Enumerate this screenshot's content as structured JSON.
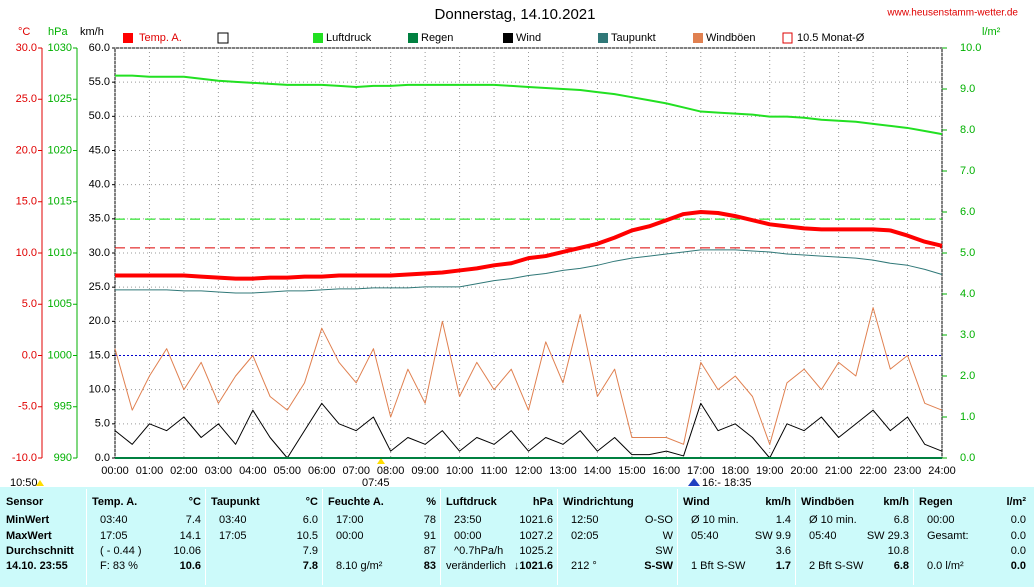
{
  "header": {
    "site": "www.heusenstamm-wetter.de"
  },
  "chart_data": {
    "type": "line",
    "title": "Donnerstag, 14.10.2021",
    "axis_units": {
      "temp": "°C",
      "hpa": "hPa",
      "y": "km/h",
      "y2": "l/m²"
    },
    "x": [
      0,
      0.5,
      1,
      1.5,
      2,
      2.5,
      3,
      3.5,
      4,
      4.5,
      5,
      5.5,
      6,
      6.5,
      7,
      7.5,
      8,
      8.5,
      9,
      9.5,
      10,
      10.5,
      11,
      11.5,
      12,
      12.5,
      13,
      13.5,
      14,
      14.5,
      15,
      15.5,
      16,
      16.5,
      17,
      17.5,
      18,
      18.5,
      19,
      19.5,
      20,
      20.5,
      21,
      21.5,
      22,
      22.5,
      23,
      23.5,
      24
    ],
    "xlim": [
      0,
      24
    ],
    "xticks": [
      {
        "value": 0,
        "label": "00:00"
      },
      {
        "value": 1,
        "label": "01:00"
      },
      {
        "value": 2,
        "label": "02:00"
      },
      {
        "value": 3,
        "label": "03:00"
      },
      {
        "value": 4,
        "label": "04:00"
      },
      {
        "value": 5,
        "label": "05:00"
      },
      {
        "value": 6,
        "label": "06:00"
      },
      {
        "value": 7,
        "label": "07:00"
      },
      {
        "value": 8,
        "label": "08:00"
      },
      {
        "value": 9,
        "label": "09:00"
      },
      {
        "value": 10,
        "label": "10:00"
      },
      {
        "value": 11,
        "label": "11:00"
      },
      {
        "value": 12,
        "label": "12:00"
      },
      {
        "value": 13,
        "label": "13:00"
      },
      {
        "value": 14,
        "label": "14:00"
      },
      {
        "value": 15,
        "label": "15:00"
      },
      {
        "value": 16,
        "label": "16:00"
      },
      {
        "value": 17,
        "label": "17:00"
      },
      {
        "value": 18,
        "label": "18:00"
      },
      {
        "value": 19,
        "label": "19:00"
      },
      {
        "value": 20,
        "label": "20:00"
      },
      {
        "value": 21,
        "label": "21:00"
      },
      {
        "value": 22,
        "label": "22:00"
      },
      {
        "value": 23,
        "label": "23:00"
      },
      {
        "value": 24,
        "label": "24:00"
      }
    ],
    "ylim": [
      0,
      60
    ],
    "yticks": [
      {
        "value": 0,
        "label": "0.0"
      },
      {
        "value": 5,
        "label": "5.0"
      },
      {
        "value": 10,
        "label": "10.0"
      },
      {
        "value": 15,
        "label": "15.0"
      },
      {
        "value": 20,
        "label": "20.0"
      },
      {
        "value": 25,
        "label": "25.0"
      },
      {
        "value": 30,
        "label": "30.0"
      },
      {
        "value": 35,
        "label": "35.0"
      },
      {
        "value": 40,
        "label": "40.0"
      },
      {
        "value": 45,
        "label": "45.0"
      },
      {
        "value": 50,
        "label": "50.0"
      },
      {
        "value": 55,
        "label": "55.0"
      },
      {
        "value": 60,
        "label": "60.0"
      }
    ],
    "temp_lim": [
      -10,
      30
    ],
    "temp_ticks": [
      {
        "value": -10,
        "label": "-10.0"
      },
      {
        "value": -5,
        "label": "-5.0"
      },
      {
        "value": 0,
        "label": "0.0"
      },
      {
        "value": 5,
        "label": "5.0"
      },
      {
        "value": 10,
        "label": "10.0"
      },
      {
        "value": 15,
        "label": "15.0"
      },
      {
        "value": 20,
        "label": "20.0"
      },
      {
        "value": 25,
        "label": "25.0"
      },
      {
        "value": 30,
        "label": "30.0"
      }
    ],
    "hpa_lim": [
      990,
      1030
    ],
    "hpa_ticks": [
      990,
      995,
      1000,
      1005,
      1010,
      1015,
      1020,
      1025,
      1030
    ],
    "y2lim": [
      0,
      10
    ],
    "y2ticks": [
      {
        "value": 0,
        "label": "0.0"
      },
      {
        "value": 1,
        "label": "1.0"
      },
      {
        "value": 2,
        "label": "2.0"
      },
      {
        "value": 3,
        "label": "3.0"
      },
      {
        "value": 4,
        "label": "4.0"
      },
      {
        "value": 5,
        "label": "5.0"
      },
      {
        "value": 6,
        "label": "6.0"
      },
      {
        "value": 7,
        "label": "7.0"
      },
      {
        "value": 8,
        "label": "8.0"
      },
      {
        "value": 9,
        "label": "9.0"
      },
      {
        "value": 10,
        "label": "10.0"
      }
    ],
    "grid": true,
    "series": [
      {
        "name": "Temp. A.",
        "color": "#ff0000",
        "axis": "temp",
        "width": 4,
        "values": [
          7.8,
          7.8,
          7.8,
          7.8,
          7.8,
          7.7,
          7.6,
          7.5,
          7.5,
          7.6,
          7.6,
          7.7,
          7.7,
          7.8,
          7.8,
          7.8,
          7.8,
          7.9,
          8.0,
          8.1,
          8.3,
          8.5,
          8.8,
          9.0,
          9.5,
          9.7,
          10.1,
          10.5,
          10.9,
          11.5,
          12.2,
          12.6,
          13.2,
          13.8,
          14.0,
          13.9,
          13.6,
          13.2,
          12.8,
          12.6,
          12.4,
          12.3,
          12.3,
          12.3,
          12.3,
          12.2,
          11.7,
          11.1,
          10.7
        ]
      },
      {
        "name": "Luftdruck",
        "color": "#22e022",
        "axis": "hpa",
        "width": 2,
        "values": [
          1027.3,
          1027.3,
          1027.2,
          1027.2,
          1027.2,
          1027.0,
          1026.8,
          1026.7,
          1026.6,
          1026.5,
          1026.4,
          1026.4,
          1026.4,
          1026.3,
          1026.2,
          1026.3,
          1026.3,
          1026.4,
          1026.4,
          1026.4,
          1026.4,
          1026.4,
          1026.4,
          1026.3,
          1026.2,
          1026.1,
          1026.0,
          1025.9,
          1025.7,
          1025.5,
          1025.2,
          1024.9,
          1024.6,
          1024.2,
          1023.8,
          1023.7,
          1023.6,
          1023.5,
          1023.3,
          1023.3,
          1023.2,
          1023.0,
          1022.9,
          1022.8,
          1022.6,
          1022.4,
          1022.2,
          1021.9,
          1021.6
        ]
      },
      {
        "name": "Regen",
        "color": "#008040",
        "axis": "y2",
        "width": 2,
        "values": [
          0,
          0,
          0,
          0,
          0,
          0,
          0,
          0,
          0,
          0,
          0,
          0,
          0,
          0,
          0,
          0,
          0,
          0,
          0,
          0,
          0,
          0,
          0,
          0,
          0,
          0,
          0,
          0,
          0,
          0,
          0,
          0,
          0,
          0,
          0,
          0,
          0,
          0,
          0,
          0,
          0,
          0,
          0,
          0,
          0,
          0,
          0,
          0,
          0
        ]
      },
      {
        "name": "Wind",
        "color": "#000000",
        "axis": "y",
        "width": 1,
        "values": [
          4,
          2,
          5,
          4,
          6,
          3,
          5,
          2,
          7,
          3,
          0,
          4,
          8,
          5,
          4,
          6,
          1,
          3,
          2,
          4,
          1,
          3,
          2,
          4,
          1,
          3,
          2,
          4,
          1,
          3,
          0.5,
          0.5,
          1,
          0.3,
          8,
          4,
          5,
          3,
          0,
          5,
          4,
          6,
          3,
          5,
          7,
          4,
          6,
          2,
          1
        ]
      },
      {
        "name": "Taupunkt",
        "color": "#307878",
        "axis": "temp",
        "width": 1,
        "values": [
          6.4,
          6.4,
          6.4,
          6.4,
          6.3,
          6.3,
          6.2,
          6.1,
          6.1,
          6.2,
          6.3,
          6.3,
          6.4,
          6.5,
          6.5,
          6.6,
          6.6,
          6.6,
          6.7,
          6.7,
          6.7,
          7.0,
          7.3,
          7.5,
          7.8,
          8.0,
          8.3,
          8.5,
          8.8,
          9.2,
          9.5,
          9.7,
          9.9,
          10.1,
          10.3,
          10.3,
          10.3,
          10.2,
          10.1,
          9.9,
          9.8,
          9.7,
          9.6,
          9.5,
          9.3,
          9.0,
          8.8,
          8.4,
          7.9
        ]
      },
      {
        "name": "Windböen",
        "color": "#e08050",
        "axis": "y",
        "width": 1,
        "values": [
          16,
          7,
          12,
          16,
          10,
          14,
          8,
          12,
          15,
          9,
          7,
          11,
          19,
          14,
          11,
          16,
          6,
          13,
          8,
          20,
          9,
          14,
          10,
          13,
          7,
          17,
          11,
          21,
          9,
          13,
          3,
          3,
          3,
          2,
          14,
          10,
          12,
          9,
          2,
          11,
          13,
          10,
          14,
          12,
          22,
          13,
          15,
          8,
          7
        ]
      }
    ],
    "reference_lines": [
      {
        "name": "10.5 Monat-Ø",
        "value": 10.5,
        "axis": "temp",
        "color": "#dd0000"
      },
      {
        "value": 1013.3,
        "axis": "hpa",
        "color": "#00dd00"
      },
      {
        "value": 0,
        "axis": "temp",
        "color": "#0000cc"
      }
    ],
    "annotations": [
      "10:50",
      "07:45",
      "16:- 18:35"
    ]
  },
  "table": {
    "sensor": {
      "title": "Sensor",
      "rows": [
        "MinWert",
        "MaxWert",
        "Durchschnitt",
        "14.10. 23:55"
      ]
    },
    "sections": [
      {
        "title": "Temp. A.",
        "unit": "°C",
        "rows": [
          [
            "03:40",
            "7.4"
          ],
          [
            "17:05",
            "14.1"
          ],
          [
            "( - 0.44 )",
            "10.06"
          ],
          [
            "F: 83 %",
            "10.6"
          ]
        ]
      },
      {
        "title": "Taupunkt",
        "unit": "°C",
        "rows": [
          [
            "03:40",
            "6.0"
          ],
          [
            "17:05",
            "10.5"
          ],
          [
            null,
            "7.9"
          ],
          [
            null,
            "7.8"
          ]
        ]
      },
      {
        "title": "Feuchte A.",
        "unit": "%",
        "rows": [
          [
            "17:00",
            "78"
          ],
          [
            "00:00",
            "91"
          ],
          [
            null,
            "87"
          ],
          [
            "8.10 g/m²",
            "83"
          ]
        ]
      },
      {
        "title": "Luftdruck",
        "unit": "hPa",
        "rows": [
          [
            "23:50",
            "1021.6"
          ],
          [
            "00:00",
            "1027.2"
          ],
          [
            "^0.7hPa/h",
            "1025.2"
          ],
          [
            "veränderlich",
            "↓1021.6"
          ]
        ]
      },
      {
        "title": "Windrichtung",
        "rows": [
          [
            "12:50",
            "O-SO"
          ],
          [
            "02:05",
            "W"
          ],
          [
            null,
            "SW"
          ],
          [
            "212 °",
            "S-SW"
          ]
        ]
      },
      {
        "title": "Wind",
        "unit": "km/h",
        "rows": [
          [
            "Ø 10 min.",
            "1.4"
          ],
          [
            "05:40",
            "SW 9.9"
          ],
          [
            null,
            "3.6"
          ],
          [
            "1 Bft S-SW",
            "1.7"
          ]
        ]
      },
      {
        "title": "Windböen",
        "unit": "km/h",
        "rows": [
          [
            "Ø 10 min.",
            "6.8"
          ],
          [
            "05:40",
            "SW 29.3"
          ],
          [
            null,
            "10.8"
          ],
          [
            "2 Bft S-SW",
            "6.8"
          ]
        ]
      },
      {
        "title": "Regen",
        "unit": "l/m²",
        "rows": [
          [
            "00:00",
            "0.0"
          ],
          [
            "Gesamt:",
            "0.0"
          ],
          [
            null,
            "0.0"
          ],
          [
            "0.0 l/m²",
            "0.0"
          ]
        ]
      }
    ]
  }
}
